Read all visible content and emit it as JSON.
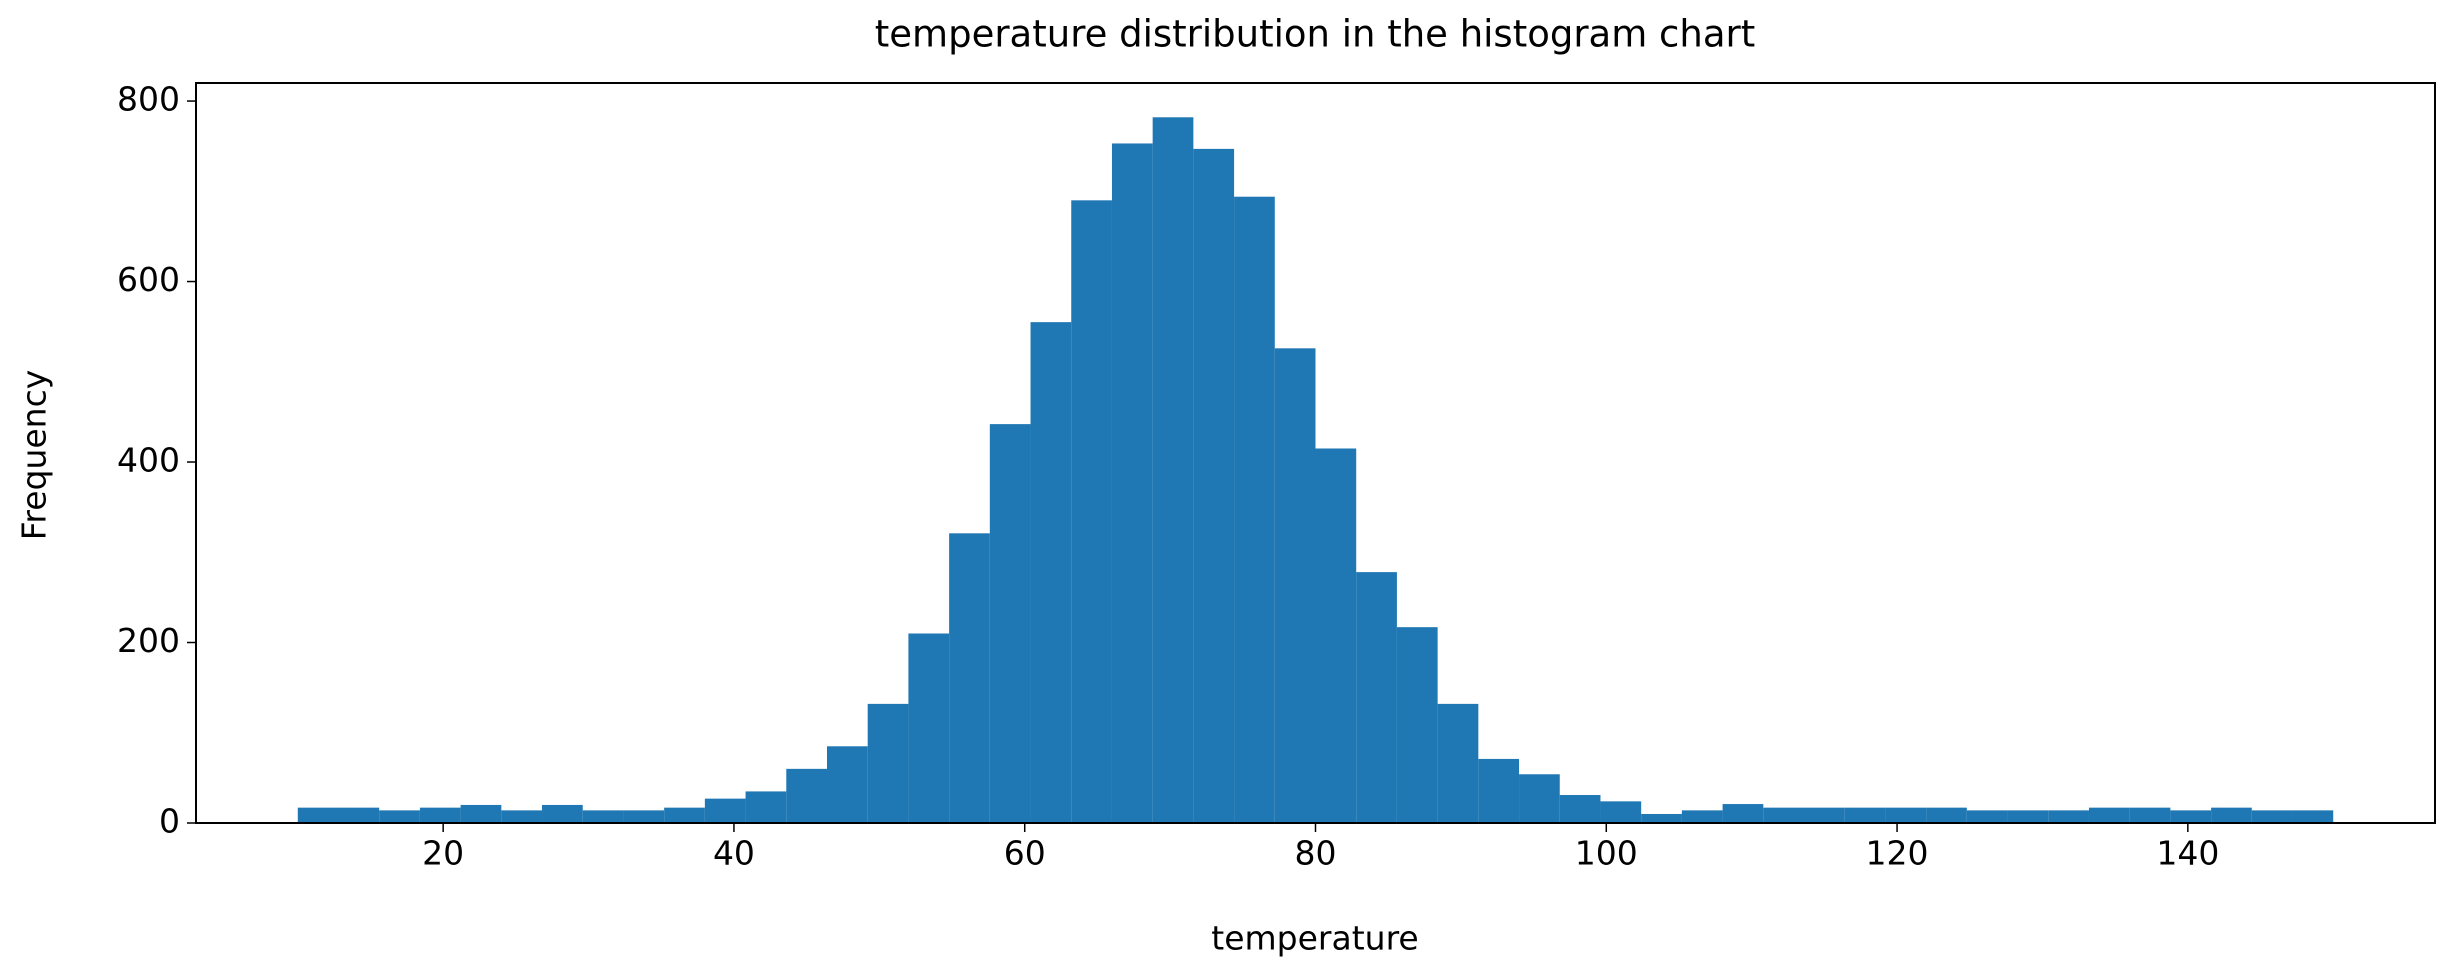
{
  "chart_data": {
    "type": "histogram",
    "title": "temperature distribution in the histogram chart",
    "x_label": "temperature",
    "y_label": "Frequency",
    "color": "#1f77b4",
    "bins": [
      10,
      12.8,
      15.6,
      18.4,
      21.2,
      24,
      26.8,
      29.6,
      32.4,
      35.2,
      38,
      40.8,
      43.6,
      46.4,
      49.2,
      52,
      54.8,
      57.6,
      60.4,
      63.2,
      66,
      68.8,
      71.6,
      74.4,
      77.2,
      80,
      82.8,
      85.6,
      88.4,
      91.2,
      94,
      96.8,
      99.6,
      102.4,
      105.2,
      108,
      110.8,
      113.6,
      116.4,
      119.2,
      122,
      124.8,
      127.6,
      130.4,
      133.2,
      136,
      138.8,
      141.6,
      144.4,
      147.2,
      150
    ],
    "values": [
      17,
      17,
      14,
      17,
      20,
      14,
      20,
      14,
      14,
      17,
      27,
      35,
      60,
      85,
      132,
      210,
      321,
      442,
      555,
      690,
      753,
      782,
      747,
      694,
      526,
      415,
      278,
      217,
      132,
      71,
      54,
      31,
      24,
      10,
      14,
      21,
      17,
      17,
      17,
      17,
      17,
      14,
      14,
      14,
      17,
      17,
      14,
      17,
      14,
      14
    ],
    "xlim": [
      3,
      157
    ],
    "ylim": [
      0,
      820
    ],
    "xticks": [
      20,
      40,
      60,
      80,
      100,
      120,
      140
    ],
    "yticks": [
      0,
      200,
      400,
      600,
      800
    ],
    "grid": false
  }
}
